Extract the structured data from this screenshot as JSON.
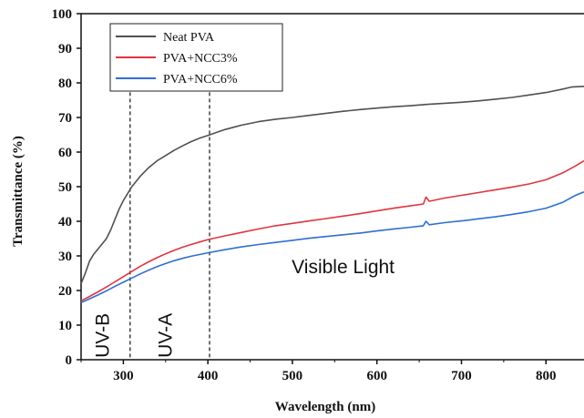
{
  "chart_data": {
    "type": "line",
    "title": "",
    "xlabel": "Wavelength (nm)",
    "ylabel": "Transmittance (%)",
    "xlim": [
      250,
      845
    ],
    "ylim": [
      0,
      100
    ],
    "x_ticks": [
      300,
      400,
      500,
      600,
      700,
      800
    ],
    "y_ticks": [
      0,
      10,
      20,
      30,
      40,
      50,
      60,
      70,
      80,
      90,
      100
    ],
    "grid": false,
    "legend_position": "top-left",
    "series": [
      {
        "name": "Neat PVA",
        "color": "#505050",
        "points": [
          [
            250,
            22
          ],
          [
            255,
            25
          ],
          [
            260,
            28.5
          ],
          [
            265,
            30.5
          ],
          [
            270,
            32
          ],
          [
            275,
            33.5
          ],
          [
            280,
            35
          ],
          [
            285,
            37.5
          ],
          [
            290,
            40.5
          ],
          [
            295,
            43.5
          ],
          [
            300,
            46
          ],
          [
            310,
            50
          ],
          [
            320,
            53
          ],
          [
            330,
            55.5
          ],
          [
            340,
            57.5
          ],
          [
            350,
            59
          ],
          [
            360,
            60.5
          ],
          [
            370,
            61.8
          ],
          [
            380,
            63
          ],
          [
            390,
            64
          ],
          [
            400,
            64.8
          ],
          [
            420,
            66.5
          ],
          [
            440,
            67.8
          ],
          [
            460,
            68.8
          ],
          [
            480,
            69.5
          ],
          [
            500,
            70
          ],
          [
            520,
            70.6
          ],
          [
            540,
            71.2
          ],
          [
            560,
            71.8
          ],
          [
            580,
            72.3
          ],
          [
            600,
            72.7
          ],
          [
            620,
            73.1
          ],
          [
            640,
            73.4
          ],
          [
            660,
            73.8
          ],
          [
            680,
            74.1
          ],
          [
            700,
            74.4
          ],
          [
            720,
            74.8
          ],
          [
            740,
            75.3
          ],
          [
            760,
            75.8
          ],
          [
            780,
            76.5
          ],
          [
            800,
            77.2
          ],
          [
            820,
            78.2
          ],
          [
            830,
            78.8
          ],
          [
            845,
            79
          ]
        ]
      },
      {
        "name": "PVA+NCC3%",
        "color": "#e0353f",
        "points": [
          [
            250,
            17
          ],
          [
            260,
            18.3
          ],
          [
            270,
            19.6
          ],
          [
            280,
            21
          ],
          [
            290,
            22.5
          ],
          [
            300,
            24
          ],
          [
            310,
            25.5
          ],
          [
            320,
            27
          ],
          [
            330,
            28.3
          ],
          [
            340,
            29.5
          ],
          [
            350,
            30.6
          ],
          [
            360,
            31.6
          ],
          [
            370,
            32.5
          ],
          [
            380,
            33.3
          ],
          [
            390,
            34
          ],
          [
            400,
            34.7
          ],
          [
            420,
            35.8
          ],
          [
            440,
            36.8
          ],
          [
            460,
            37.8
          ],
          [
            480,
            38.7
          ],
          [
            500,
            39.4
          ],
          [
            520,
            40.1
          ],
          [
            540,
            40.8
          ],
          [
            560,
            41.5
          ],
          [
            580,
            42.2
          ],
          [
            600,
            43
          ],
          [
            620,
            43.8
          ],
          [
            640,
            44.5
          ],
          [
            655,
            45
          ],
          [
            658,
            47
          ],
          [
            662,
            45.8
          ],
          [
            680,
            46.7
          ],
          [
            700,
            47.5
          ],
          [
            720,
            48.3
          ],
          [
            740,
            49.1
          ],
          [
            760,
            49.9
          ],
          [
            780,
            50.8
          ],
          [
            800,
            52
          ],
          [
            820,
            54
          ],
          [
            835,
            56
          ],
          [
            845,
            57.5
          ]
        ]
      },
      {
        "name": "PVA+NCC6%",
        "color": "#2e6fd1",
        "points": [
          [
            250,
            16.5
          ],
          [
            260,
            17.6
          ],
          [
            270,
            18.7
          ],
          [
            280,
            19.9
          ],
          [
            290,
            21.2
          ],
          [
            300,
            22.4
          ],
          [
            310,
            23.6
          ],
          [
            320,
            24.8
          ],
          [
            330,
            25.9
          ],
          [
            340,
            26.9
          ],
          [
            350,
            27.8
          ],
          [
            360,
            28.6
          ],
          [
            370,
            29.3
          ],
          [
            380,
            29.9
          ],
          [
            390,
            30.4
          ],
          [
            400,
            30.9
          ],
          [
            420,
            31.8
          ],
          [
            440,
            32.6
          ],
          [
            460,
            33.3
          ],
          [
            480,
            33.9
          ],
          [
            500,
            34.5
          ],
          [
            520,
            35.1
          ],
          [
            540,
            35.6
          ],
          [
            560,
            36.1
          ],
          [
            580,
            36.6
          ],
          [
            600,
            37.2
          ],
          [
            620,
            37.8
          ],
          [
            640,
            38.3
          ],
          [
            655,
            38.7
          ],
          [
            658,
            40
          ],
          [
            662,
            39
          ],
          [
            680,
            39.6
          ],
          [
            700,
            40.1
          ],
          [
            720,
            40.7
          ],
          [
            740,
            41.3
          ],
          [
            760,
            42
          ],
          [
            780,
            42.8
          ],
          [
            800,
            43.8
          ],
          [
            820,
            45.5
          ],
          [
            835,
            47.5
          ],
          [
            845,
            48.5
          ]
        ]
      }
    ],
    "dashed_lines_x": [
      308,
      402
    ],
    "annotations": [
      {
        "text": "UV-B",
        "x": 283,
        "y": 7,
        "rotated": true
      },
      {
        "text": "UV-A",
        "x": 357,
        "y": 7,
        "rotated": true
      },
      {
        "text": "Visible Light",
        "x": 560,
        "y": 25,
        "rotated": false
      }
    ]
  }
}
